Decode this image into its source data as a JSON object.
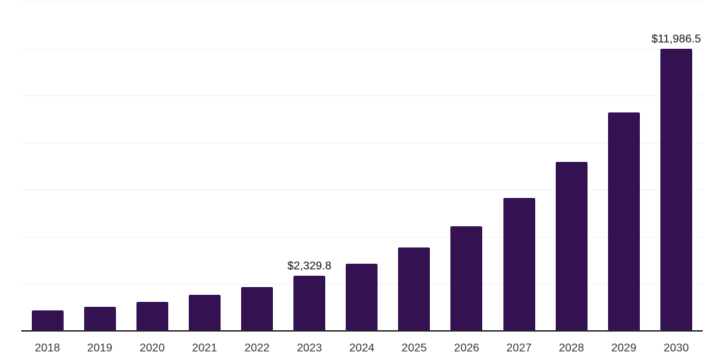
{
  "chart_data": {
    "type": "bar",
    "title": "",
    "xlabel": "",
    "ylabel": "",
    "categories": [
      "2018",
      "2019",
      "2020",
      "2021",
      "2022",
      "2023",
      "2024",
      "2025",
      "2026",
      "2027",
      "2028",
      "2029",
      "2030"
    ],
    "values": [
      865,
      1035,
      1235,
      1530,
      1850,
      2329.8,
      2840,
      3540,
      4440,
      5640,
      7190,
      9280,
      11986.5
    ],
    "annotations": [
      {
        "category": "2023",
        "text": "$2,329.8"
      },
      {
        "category": "2030",
        "text": "$11,986.5"
      }
    ],
    "ylim": [
      0,
      14000
    ],
    "gridline_step": 2000,
    "grid": true,
    "legend": false,
    "y_tick_labels_visible": false,
    "colors": {
      "bar": "#341150",
      "gridline": "#F2F2F2",
      "axis_line": "#262626",
      "tick_label": "#333333",
      "data_label": "#111111",
      "background": "#FFFFFF"
    }
  }
}
